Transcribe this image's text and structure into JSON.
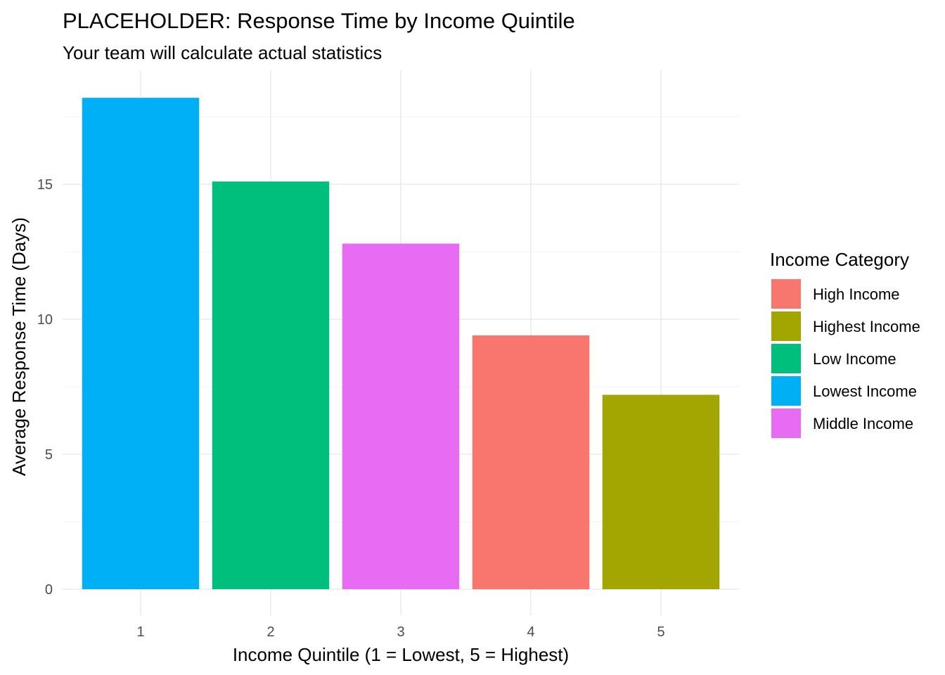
{
  "chart_data": {
    "type": "bar",
    "title": "PLACEHOLDER: Response Time by Income Quintile",
    "subtitle": "Your team will calculate actual statistics",
    "xlabel": "Income Quintile (1 = Lowest, 5 = Highest)",
    "ylabel": "Average Response Time (Days)",
    "categories": [
      "1",
      "2",
      "3",
      "4",
      "5"
    ],
    "values": [
      18.2,
      15.1,
      12.8,
      9.4,
      7.2
    ],
    "fill_group": [
      "Lowest Income",
      "Low Income",
      "Middle Income",
      "High Income",
      "Highest Income"
    ],
    "ylim": [
      0,
      19
    ],
    "yticks": [
      0,
      5,
      10,
      15
    ],
    "yticks_labels": [
      "0",
      "5",
      "10",
      "15"
    ],
    "grid": true,
    "legend": {
      "title": "Income Category",
      "placement": "right",
      "entries": [
        {
          "label": "High Income",
          "color": "#F8766D"
        },
        {
          "label": "Highest Income",
          "color": "#A3A500"
        },
        {
          "label": "Low Income",
          "color": "#00BF7D"
        },
        {
          "label": "Lowest Income",
          "color": "#00B0F6"
        },
        {
          "label": "Middle Income",
          "color": "#E76BF3"
        }
      ]
    }
  }
}
